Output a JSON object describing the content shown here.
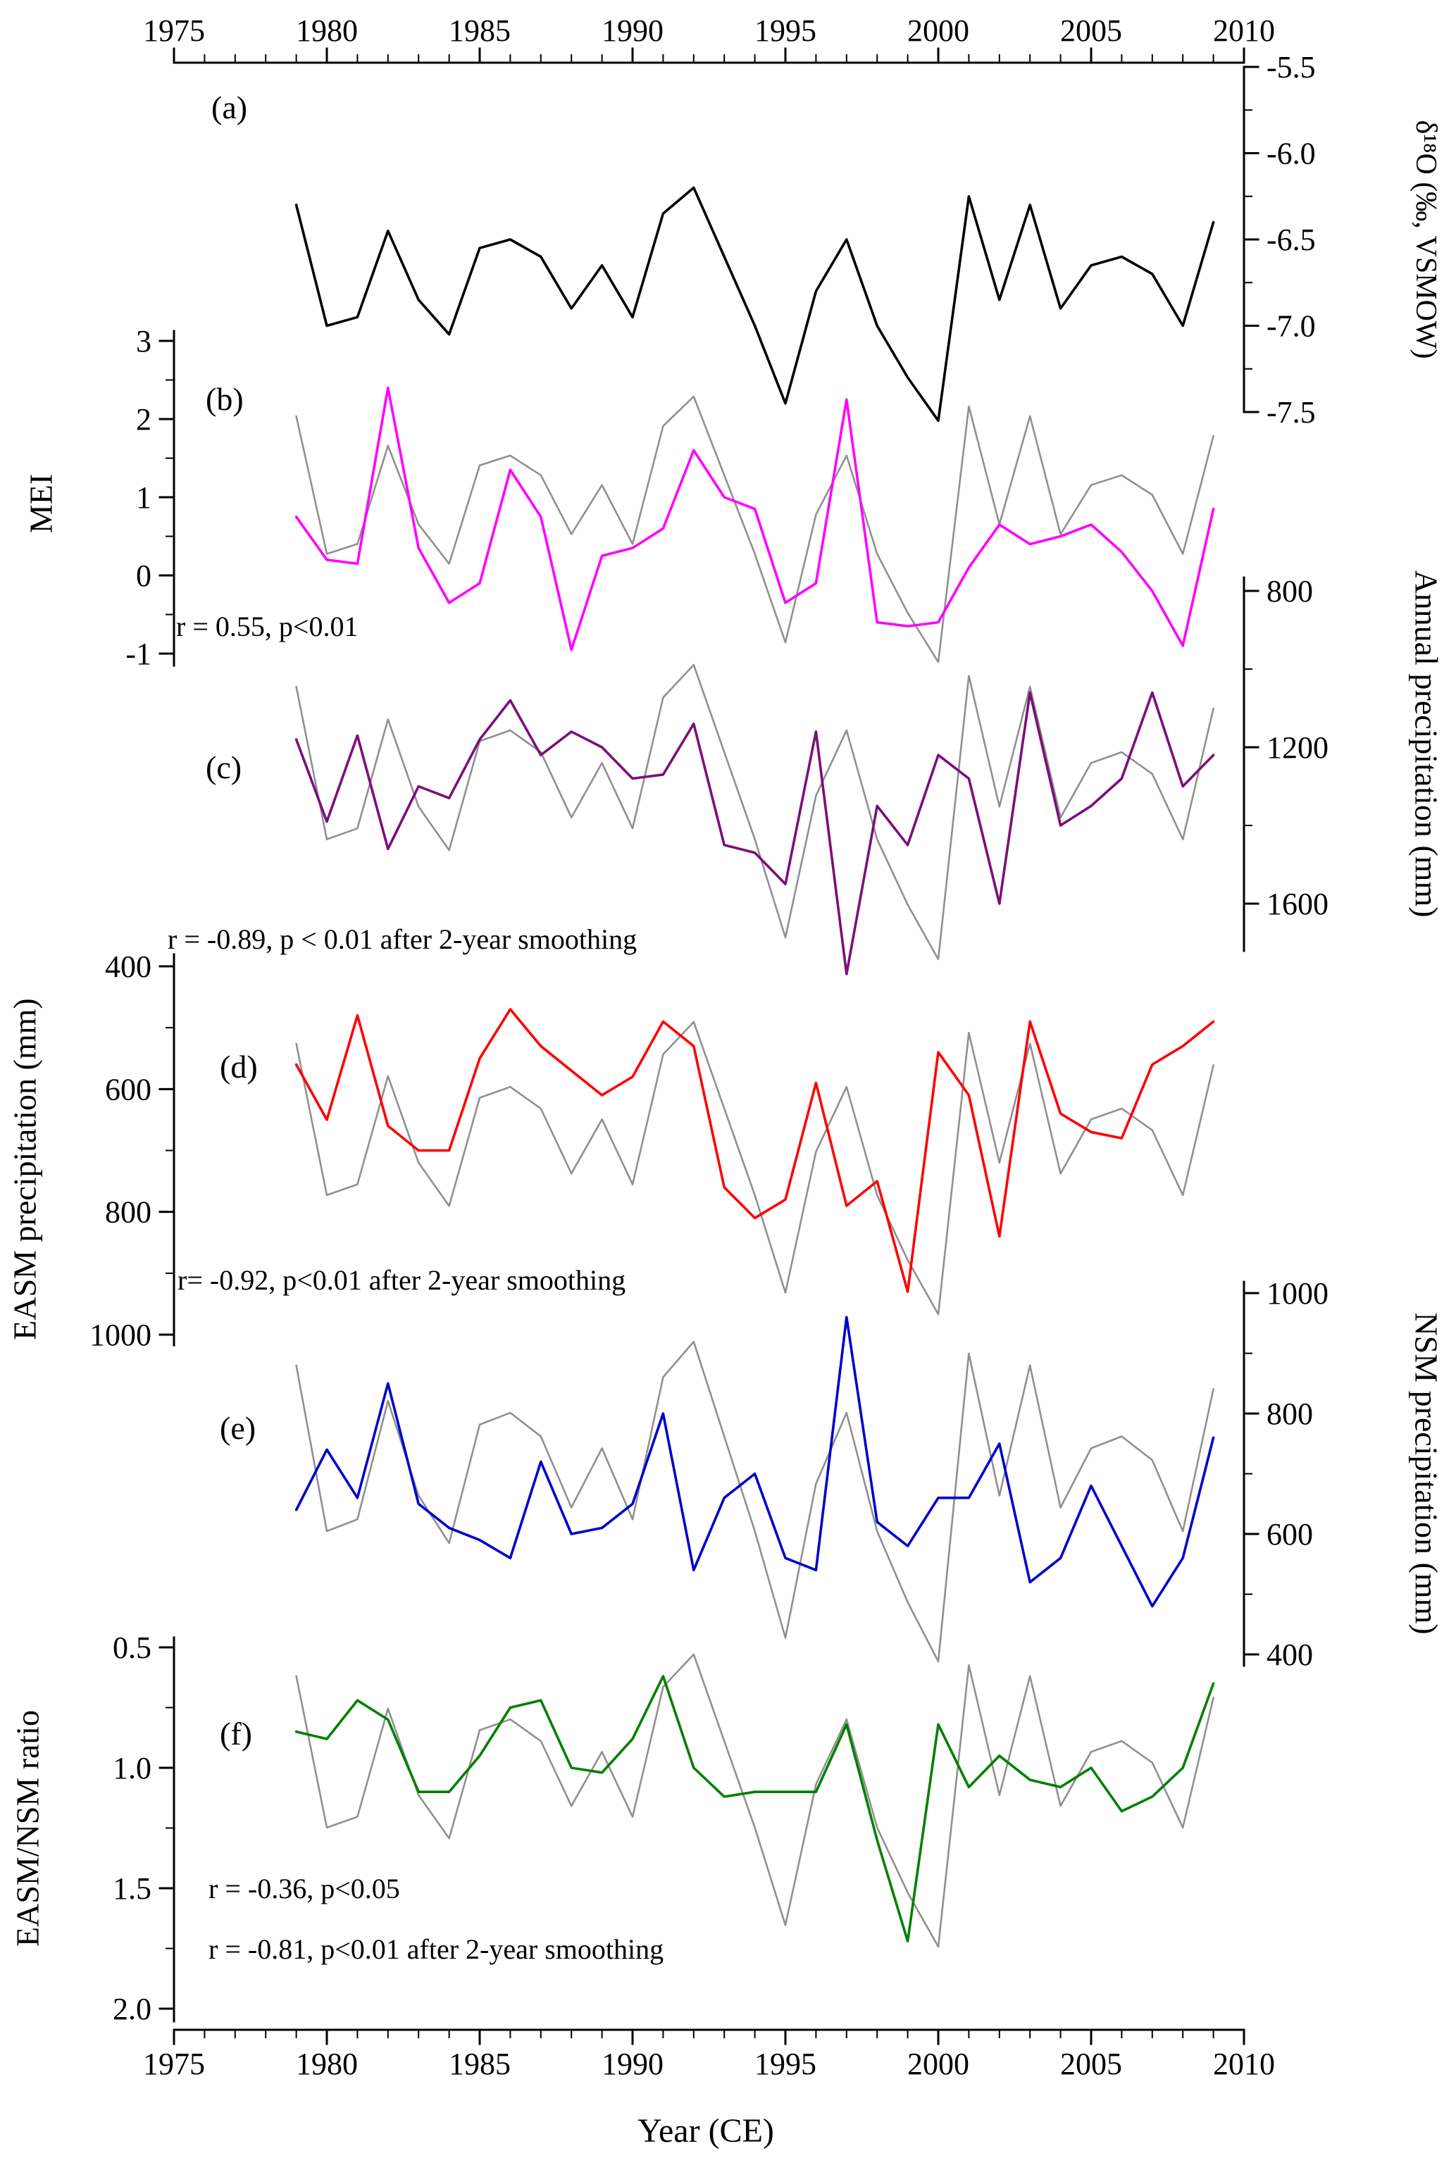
{
  "chart_data": {
    "type": "line",
    "x_label": "Year (CE)",
    "x_axis": {
      "min": 1975,
      "max": 2010,
      "major_ticks": [
        1975,
        1980,
        1985,
        1990,
        1995,
        2000,
        2005,
        2010
      ]
    },
    "x": [
      1979,
      1980,
      1981,
      1982,
      1983,
      1984,
      1985,
      1986,
      1987,
      1988,
      1989,
      1990,
      1991,
      1992,
      1993,
      1994,
      1995,
      1996,
      1997,
      1998,
      1999,
      2000,
      2001,
      2002,
      2003,
      2004,
      2005,
      2006,
      2007,
      2008,
      2009
    ],
    "gray_overlay": {
      "name": "δ¹⁸O reference (gray)",
      "color": "#909090",
      "values": [
        -6.3,
        -7.0,
        -6.95,
        -6.45,
        -6.85,
        -7.05,
        -6.55,
        -6.5,
        -6.6,
        -6.9,
        -6.65,
        -6.95,
        -6.35,
        -6.2,
        -6.6,
        -7.0,
        -7.45,
        -6.8,
        -6.5,
        -7.0,
        -7.3,
        -7.55,
        -6.25,
        -6.85,
        -6.3,
        -6.9,
        -6.65,
        -6.6,
        -6.7,
        -7.0,
        -6.4
      ]
    },
    "panels": [
      {
        "id": "a",
        "letter": "(a)",
        "axis_side": "right",
        "axis_title": "δ¹⁸O (‰, VSMOW)",
        "axis_ticks": [
          -5.5,
          -6.0,
          -6.5,
          -7.0,
          -7.5
        ],
        "tick_labels": [
          "-5.5",
          "-6.0",
          "-6.5",
          "-7.0",
          "-7.5"
        ],
        "axis_top_value": -5.5,
        "axis_bottom_value": -7.5,
        "annotations": [],
        "has_gray_overlay": false,
        "series": {
          "name": "δ¹⁸O",
          "color": "#000000",
          "values": [
            -6.3,
            -7.0,
            -6.95,
            -6.45,
            -6.85,
            -7.05,
            -6.55,
            -6.5,
            -6.6,
            -6.9,
            -6.65,
            -6.95,
            -6.35,
            -6.2,
            -6.6,
            -7.0,
            -7.45,
            -6.8,
            -6.5,
            -7.0,
            -7.3,
            -7.55,
            -6.25,
            -6.85,
            -6.3,
            -6.9,
            -6.65,
            -6.6,
            -6.7,
            -7.0,
            -6.4
          ]
        }
      },
      {
        "id": "b",
        "letter": "(b)",
        "axis_side": "left",
        "axis_title": "MEI",
        "axis_ticks": [
          3,
          2,
          1,
          0,
          -1
        ],
        "tick_labels": [
          "3",
          "2",
          "1",
          "0",
          "-1"
        ],
        "axis_top_value": 3,
        "axis_bottom_value": -1,
        "annotations": [
          "r = 0.55, p<0.01"
        ],
        "has_gray_overlay": true,
        "series": {
          "name": "MEI",
          "color": "#FF00FF",
          "values": [
            0.75,
            0.2,
            0.15,
            2.4,
            0.35,
            -0.35,
            -0.1,
            1.35,
            0.75,
            -0.95,
            0.25,
            0.35,
            0.6,
            1.6,
            1.0,
            0.85,
            -0.35,
            -0.1,
            2.25,
            -0.6,
            -0.65,
            -0.6,
            0.1,
            0.65,
            0.4,
            0.5,
            0.65,
            0.3,
            -0.2,
            -0.9,
            0.85
          ]
        }
      },
      {
        "id": "c",
        "letter": "(c)",
        "axis_side": "right",
        "axis_title": "Annual precipitation (mm)",
        "axis_ticks": [
          800,
          1200,
          1600
        ],
        "tick_labels": [
          "800",
          "1200",
          "1600"
        ],
        "axis_top_value": 800,
        "axis_bottom_value": 1600,
        "annotations": [
          "r = -0.89, p < 0.01 after 2-year smoothing"
        ],
        "has_gray_overlay": true,
        "series": {
          "name": "Annual precipitation",
          "color": "#7B0F7B",
          "values": [
            1180,
            1390,
            1170,
            1460,
            1300,
            1330,
            1180,
            1080,
            1220,
            1160,
            1200,
            1280,
            1270,
            1140,
            1450,
            1470,
            1550,
            1160,
            1780,
            1350,
            1450,
            1220,
            1280,
            1600,
            1060,
            1400,
            1350,
            1280,
            1060,
            1300,
            1220
          ]
        }
      },
      {
        "id": "d",
        "letter": "(d)",
        "axis_side": "left",
        "axis_title": "EASM precipitation (mm)",
        "axis_ticks": [
          400,
          600,
          800,
          1000
        ],
        "tick_labels": [
          "400",
          "600",
          "800",
          "1000"
        ],
        "axis_top_value": 400,
        "axis_bottom_value": 1000,
        "annotations": [
          "r= -0.92, p<0.01 after 2-year smoothing"
        ],
        "has_gray_overlay": true,
        "series": {
          "name": "EASM precipitation",
          "color": "#FF0000",
          "values": [
            560,
            650,
            480,
            660,
            700,
            700,
            550,
            470,
            530,
            570,
            610,
            580,
            490,
            530,
            760,
            810,
            780,
            590,
            790,
            750,
            930,
            540,
            610,
            840,
            490,
            640,
            670,
            680,
            560,
            530,
            490
          ]
        }
      },
      {
        "id": "e",
        "letter": "(e)",
        "axis_side": "right",
        "axis_title": "NSM precipitation (mm)",
        "axis_ticks": [
          1000,
          800,
          600,
          400
        ],
        "tick_labels": [
          "1000",
          "800",
          "600",
          "400"
        ],
        "axis_top_value": 1000,
        "axis_bottom_value": 400,
        "annotations": [],
        "has_gray_overlay": true,
        "series": {
          "name": "NSM precipitation",
          "color": "#0000CD",
          "values": [
            640,
            740,
            660,
            850,
            650,
            610,
            590,
            560,
            720,
            600,
            610,
            650,
            800,
            540,
            660,
            700,
            560,
            540,
            960,
            620,
            580,
            660,
            660,
            750,
            520,
            560,
            680,
            580,
            480,
            560,
            760
          ]
        }
      },
      {
        "id": "f",
        "letter": "(f)",
        "axis_side": "left",
        "axis_title": "EASM/NSM ratio",
        "axis_ticks": [
          0.5,
          1.0,
          1.5,
          2.0
        ],
        "tick_labels": [
          "0.5",
          "1.0",
          "1.5",
          "2.0"
        ],
        "axis_top_value": 0.5,
        "axis_bottom_value": 2.0,
        "annotations": [
          "r = -0.36, p<0.05",
          "r = -0.81, p<0.01 after 2-year smoothing"
        ],
        "has_gray_overlay": true,
        "series": {
          "name": "EASM/NSM ratio",
          "color": "#008000",
          "values": [
            0.85,
            0.88,
            0.72,
            0.8,
            1.1,
            1.1,
            0.95,
            0.75,
            0.72,
            1.0,
            1.02,
            0.88,
            0.62,
            1.0,
            1.12,
            1.1,
            1.1,
            1.1,
            0.82,
            1.3,
            1.72,
            0.82,
            1.08,
            0.95,
            1.05,
            1.08,
            1.0,
            1.18,
            1.12,
            1.0,
            0.65
          ]
        }
      }
    ]
  }
}
